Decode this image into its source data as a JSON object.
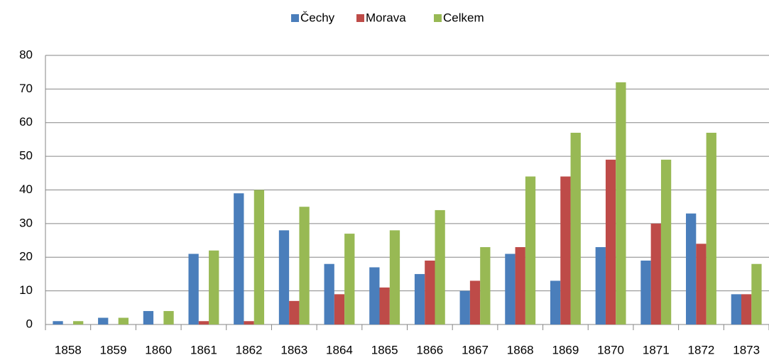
{
  "chart_data": {
    "type": "bar",
    "categories": [
      "1858",
      "1859",
      "1860",
      "1861",
      "1862",
      "1863",
      "1864",
      "1865",
      "1866",
      "1867",
      "1868",
      "1869",
      "1870",
      "1871",
      "1872",
      "1873"
    ],
    "series": [
      {
        "name": "Čechy",
        "color": "#4a7ebb",
        "values": [
          1,
          2,
          4,
          21,
          39,
          28,
          18,
          17,
          15,
          10,
          21,
          13,
          23,
          19,
          33,
          9
        ]
      },
      {
        "name": "Morava",
        "color": "#be4b48",
        "values": [
          0,
          0,
          0,
          1,
          1,
          7,
          9,
          11,
          19,
          13,
          23,
          44,
          49,
          30,
          24,
          9
        ]
      },
      {
        "name": "Celkem",
        "color": "#98b954",
        "values": [
          1,
          2,
          4,
          22,
          40,
          35,
          27,
          28,
          34,
          23,
          44,
          57,
          72,
          49,
          57,
          18
        ]
      }
    ],
    "ylim": [
      0,
      80
    ],
    "yticks": [
      0,
      10,
      20,
      30,
      40,
      50,
      60,
      70,
      80
    ],
    "grid": true,
    "legend": "top"
  }
}
